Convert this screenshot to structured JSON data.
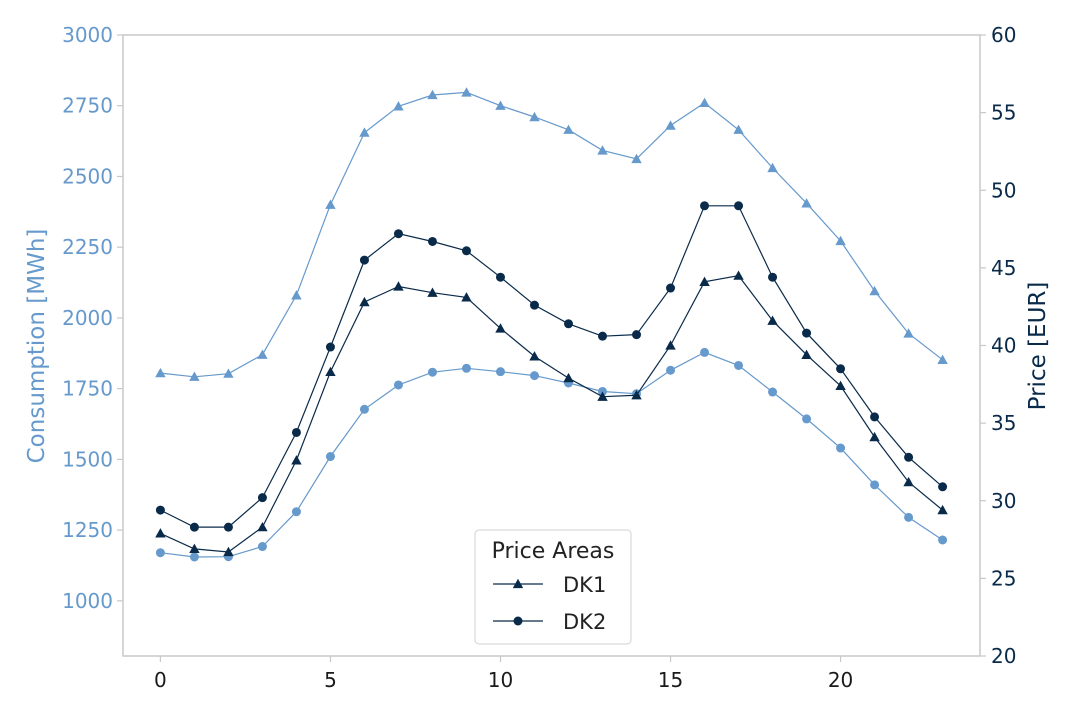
{
  "colors": {
    "consumption": "#6699cc",
    "price": "#0a2a4a",
    "frame": "#c8c8c8"
  },
  "chart_data": {
    "type": "line",
    "title": "",
    "x": [
      0,
      1,
      2,
      3,
      4,
      5,
      6,
      7,
      8,
      9,
      10,
      11,
      12,
      13,
      14,
      15,
      16,
      17,
      18,
      19,
      20,
      21,
      22,
      23
    ],
    "xlim": [
      -1.1,
      24.1
    ],
    "x_ticks": [
      0,
      5,
      10,
      15,
      20
    ],
    "x_tick_labels": [
      "0",
      "5",
      "10",
      "15",
      "20"
    ],
    "xlabel": "",
    "y_left": {
      "label": "Consumption [MWh]",
      "lim": [
        805,
        3000
      ],
      "ticks": [
        1000,
        1250,
        1500,
        1750,
        2000,
        2250,
        2500,
        2750,
        3000
      ],
      "tick_labels": [
        "1000",
        "1250",
        "1500",
        "1750",
        "2000",
        "2250",
        "2500",
        "2750",
        "3000"
      ]
    },
    "y_right": {
      "label": "Price [EUR]",
      "lim": [
        20,
        60
      ],
      "ticks": [
        20,
        25,
        30,
        35,
        40,
        45,
        50,
        55,
        60
      ],
      "tick_labels": [
        "20",
        "25",
        "30",
        "35",
        "40",
        "45",
        "50",
        "55",
        "60"
      ]
    },
    "grid": false,
    "legend": {
      "title": "Price Areas",
      "placement": "lower-center",
      "entries": [
        {
          "label": "DK1",
          "marker": "triangle"
        },
        {
          "label": "DK2",
          "marker": "circle"
        }
      ]
    },
    "series": [
      {
        "name": "DK1",
        "axis": "left",
        "marker": "triangle",
        "values": [
          1805,
          1792,
          1803,
          1870,
          2080,
          2400,
          2655,
          2748,
          2788,
          2797,
          2750,
          2710,
          2665,
          2592,
          2562,
          2680,
          2760,
          2665,
          2530,
          2405,
          2272,
          2095,
          1945,
          1852
        ]
      },
      {
        "name": "DK2",
        "axis": "left",
        "marker": "circle",
        "values": [
          1170,
          1155,
          1156,
          1192,
          1315,
          1510,
          1677,
          1763,
          1808,
          1822,
          1810,
          1796,
          1770,
          1740,
          1732,
          1815,
          1878,
          1832,
          1738,
          1643,
          1540,
          1410,
          1295,
          1215
        ]
      },
      {
        "name": "DK1",
        "axis": "right",
        "marker": "triangle",
        "values": [
          27.9,
          26.9,
          26.7,
          28.3,
          32.6,
          38.3,
          42.8,
          43.8,
          43.4,
          43.1,
          41.1,
          39.3,
          37.9,
          36.7,
          36.8,
          40.0,
          44.1,
          44.5,
          41.6,
          39.4,
          37.4,
          34.1,
          31.2,
          29.4
        ]
      },
      {
        "name": "DK2",
        "axis": "right",
        "marker": "circle",
        "values": [
          29.4,
          28.3,
          28.3,
          30.2,
          34.4,
          39.9,
          45.5,
          47.2,
          46.7,
          46.1,
          44.4,
          42.6,
          41.4,
          40.6,
          40.7,
          43.7,
          49.0,
          49.0,
          44.4,
          40.8,
          38.5,
          35.4,
          32.8,
          30.9
        ]
      }
    ]
  }
}
